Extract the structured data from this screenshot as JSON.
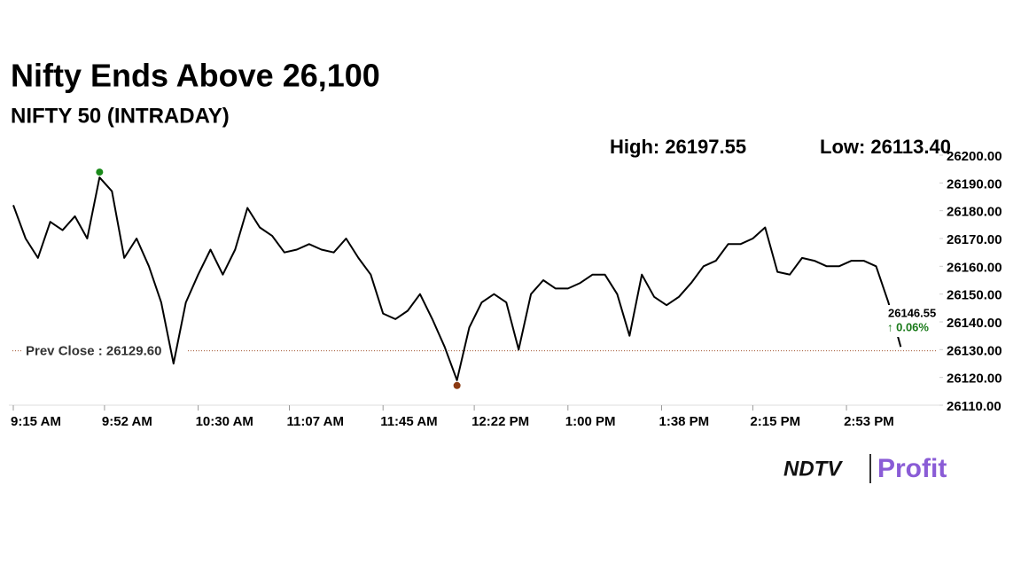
{
  "chart_data": {
    "type": "line",
    "title": "Nifty Ends Above 26,100",
    "subtitle": "NIFTY 50 (INTRADAY)",
    "high_label": "High: 26197.55",
    "low_label": "Low: 26113.40",
    "last_value_label": "26146.55",
    "change_label": "↑ 0.06%",
    "reference_line": {
      "value": 26129.6,
      "label": "Prev Close : 26129.60"
    },
    "logo": [
      "NDTV",
      "Profit"
    ],
    "x": [
      "9:15 AM",
      "9:20 AM",
      "9:25 AM",
      "9:30 AM",
      "9:35 AM",
      "9:40 AM",
      "9:45 AM",
      "9:50 AM",
      "9:55 AM",
      "10:00 AM",
      "10:05 AM",
      "10:10 AM",
      "10:15 AM",
      "10:20 AM",
      "10:25 AM",
      "10:30 AM",
      "10:35 AM",
      "10:40 AM",
      "10:45 AM",
      "10:50 AM",
      "10:55 AM",
      "11:00 AM",
      "11:05 AM",
      "11:10 AM",
      "11:15 AM",
      "11:20 AM",
      "11:25 AM",
      "11:30 AM",
      "11:35 AM",
      "11:40 AM",
      "11:45 AM",
      "11:50 AM",
      "11:55 AM",
      "12:00 PM",
      "12:05 PM",
      "12:10 PM",
      "12:15 PM",
      "12:20 PM",
      "12:25 PM",
      "12:30 PM",
      "12:35 PM",
      "12:40 PM",
      "12:45 PM",
      "12:50 PM",
      "12:55 PM",
      "1:00 PM",
      "1:05 PM",
      "1:10 PM",
      "1:15 PM",
      "1:20 PM",
      "1:25 PM",
      "1:30 PM",
      "1:35 PM",
      "1:40 PM",
      "1:45 PM",
      "1:50 PM",
      "1:55 PM",
      "2:00 PM",
      "2:05 PM",
      "2:10 PM",
      "2:15 PM",
      "2:20 PM",
      "2:25 PM",
      "2:30 PM",
      "2:35 PM",
      "2:40 PM",
      "2:45 PM",
      "2:50 PM",
      "2:55 PM",
      "3:00 PM",
      "3:05 PM",
      "3:10 PM",
      "3:15 PM"
    ],
    "series": [
      {
        "name": "NIFTY 50",
        "color": "#000000",
        "values": [
          26182,
          26170,
          26163,
          26176,
          26173,
          26178,
          26170,
          26192,
          26187,
          26163,
          26170,
          26160,
          26147,
          26125,
          26147,
          26157,
          26166,
          26157,
          26166,
          26181,
          26174,
          26171,
          26165,
          26166,
          26168,
          26166,
          26165,
          26170,
          26163,
          26157,
          26143,
          26141,
          26144,
          26150,
          26141,
          26131,
          26119,
          26138,
          26147,
          26150,
          26147,
          26130,
          26150,
          26155,
          26152,
          26152,
          26154,
          26157,
          26157,
          26150,
          26135,
          26157,
          26149,
          26146,
          26149,
          26154,
          26160,
          26162,
          26168,
          26168,
          26170,
          26174,
          26158,
          26157,
          26163,
          26162,
          26160,
          26160,
          26162,
          26162,
          26160,
          26147,
          26131
        ]
      }
    ],
    "xlim": [
      "9:15 AM",
      "3:30 PM"
    ],
    "xticks": [
      "9:15 AM",
      "9:52 AM",
      "10:30 AM",
      "11:07 AM",
      "11:45 AM",
      "12:22 PM",
      "1:00 PM",
      "1:38 PM",
      "2:15 PM",
      "2:53 PM"
    ],
    "ylim": [
      26110,
      26200
    ],
    "yticks": [
      {
        "value": 26110,
        "label": "26110.00"
      },
      {
        "value": 26120,
        "label": "26120.00"
      },
      {
        "value": 26130,
        "label": "26130.00"
      },
      {
        "value": 26140,
        "label": "26140.00"
      },
      {
        "value": 26150,
        "label": "26150.00"
      },
      {
        "value": 26160,
        "label": "26160.00"
      },
      {
        "value": 26170,
        "label": "26170.00"
      },
      {
        "value": 26180,
        "label": "26180.00"
      },
      {
        "value": 26190,
        "label": "26190.00"
      },
      {
        "value": 26200,
        "label": "26200.00"
      }
    ]
  }
}
